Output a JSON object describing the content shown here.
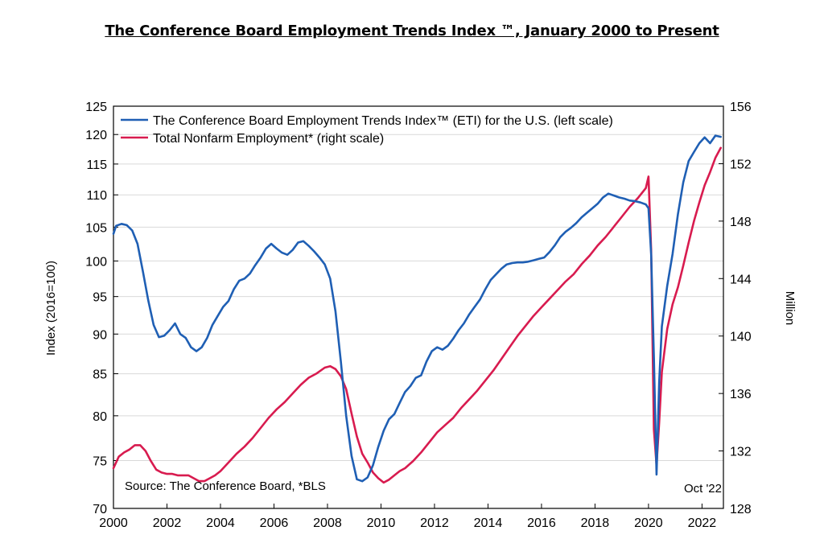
{
  "title": "The Conference Board Employment Trends Index ™, January 2000 to Present",
  "chart_data": {
    "type": "line",
    "title": "The Conference Board Employment Trends Index ™, January 2000 to Present",
    "xlabel": "",
    "ylabel_left": "Index (2016=100)",
    "ylabel_right": "Million",
    "xlim": [
      2000,
      2022.8
    ],
    "ylim_left": [
      70,
      125
    ],
    "ylim_right": [
      128,
      156
    ],
    "left_scale": "log",
    "x_ticks": [
      "2000",
      "2002",
      "2004",
      "2006",
      "2008",
      "2010",
      "2012",
      "2014",
      "2016",
      "2018",
      "2020",
      "2022"
    ],
    "y_ticks_left": [
      70,
      75,
      80,
      85,
      90,
      95,
      100,
      105,
      110,
      115,
      120,
      125
    ],
    "y_ticks_right": [
      128,
      132,
      136,
      140,
      144,
      148,
      152,
      156
    ],
    "grid": "horizontal",
    "legend_position": "top-left",
    "annotations": {
      "source": "Source: The Conference Board, *BLS",
      "date": "Oct '22"
    },
    "series": [
      {
        "name": "The Conference Board Employment Trends Index™ (ETI) for the U.S. (left scale)",
        "axis": "left",
        "color": "#1f5fb4",
        "x": [
          2000.0,
          2000.1,
          2000.3,
          2000.5,
          2000.7,
          2000.9,
          2001.1,
          2001.3,
          2001.5,
          2001.7,
          2001.9,
          2002.1,
          2002.3,
          2002.5,
          2002.7,
          2002.9,
          2003.1,
          2003.3,
          2003.5,
          2003.7,
          2003.9,
          2004.1,
          2004.3,
          2004.5,
          2004.7,
          2004.9,
          2005.1,
          2005.3,
          2005.5,
          2005.7,
          2005.9,
          2006.1,
          2006.3,
          2006.5,
          2006.7,
          2006.9,
          2007.1,
          2007.3,
          2007.5,
          2007.7,
          2007.9,
          2008.1,
          2008.3,
          2008.5,
          2008.7,
          2008.9,
          2009.1,
          2009.3,
          2009.5,
          2009.7,
          2009.9,
          2010.1,
          2010.3,
          2010.5,
          2010.7,
          2010.9,
          2011.1,
          2011.3,
          2011.5,
          2011.7,
          2011.9,
          2012.1,
          2012.3,
          2012.5,
          2012.7,
          2012.9,
          2013.1,
          2013.3,
          2013.5,
          2013.7,
          2013.9,
          2014.1,
          2014.3,
          2014.5,
          2014.7,
          2014.9,
          2015.1,
          2015.3,
          2015.5,
          2015.7,
          2015.9,
          2016.1,
          2016.3,
          2016.5,
          2016.7,
          2016.9,
          2017.1,
          2017.3,
          2017.5,
          2017.7,
          2017.9,
          2018.1,
          2018.3,
          2018.5,
          2018.7,
          2018.9,
          2019.1,
          2019.3,
          2019.5,
          2019.7,
          2019.9,
          2020.0,
          2020.1,
          2020.2,
          2020.3,
          2020.4,
          2020.5,
          2020.7,
          2020.9,
          2021.1,
          2021.3,
          2021.5,
          2021.7,
          2021.9,
          2022.1,
          2022.3,
          2022.5,
          2022.7
        ],
        "values": [
          104.0,
          105.2,
          105.5,
          105.3,
          104.5,
          102.5,
          98.5,
          94.5,
          91.2,
          89.6,
          89.8,
          90.5,
          91.4,
          90.0,
          89.5,
          88.3,
          87.8,
          88.3,
          89.5,
          91.2,
          92.4,
          93.6,
          94.4,
          96.0,
          97.2,
          97.5,
          98.2,
          99.4,
          100.5,
          101.8,
          102.5,
          101.8,
          101.2,
          100.9,
          101.6,
          102.7,
          102.9,
          102.2,
          101.4,
          100.5,
          99.5,
          97.5,
          93.0,
          86.5,
          80.0,
          75.5,
          73.0,
          72.8,
          73.2,
          74.5,
          76.5,
          78.3,
          79.6,
          80.2,
          81.5,
          82.8,
          83.5,
          84.5,
          84.8,
          86.5,
          87.8,
          88.3,
          88.0,
          88.5,
          89.4,
          90.5,
          91.4,
          92.6,
          93.6,
          94.6,
          96.0,
          97.3,
          98.1,
          98.9,
          99.5,
          99.7,
          99.8,
          99.8,
          99.9,
          100.1,
          100.3,
          100.5,
          101.3,
          102.3,
          103.5,
          104.3,
          104.9,
          105.6,
          106.5,
          107.2,
          107.9,
          108.6,
          109.6,
          110.2,
          109.9,
          109.6,
          109.4,
          109.1,
          109.0,
          108.8,
          108.5,
          107.9,
          101.0,
          87.0,
          73.5,
          84.0,
          91.0,
          96.5,
          101.0,
          107.0,
          112.0,
          115.5,
          117.0,
          118.5,
          119.5,
          118.5,
          119.8,
          119.6
        ]
      },
      {
        "name": "Total Nonfarm Employment* (right scale)",
        "axis": "right",
        "color": "#d81b4f",
        "x": [
          2000.0,
          2000.2,
          2000.4,
          2000.6,
          2000.8,
          2001.0,
          2001.2,
          2001.4,
          2001.6,
          2001.8,
          2002.0,
          2002.2,
          2002.4,
          2002.6,
          2002.8,
          2003.0,
          2003.2,
          2003.4,
          2003.6,
          2003.8,
          2004.0,
          2004.3,
          2004.6,
          2004.9,
          2005.2,
          2005.5,
          2005.8,
          2006.1,
          2006.4,
          2006.7,
          2007.0,
          2007.3,
          2007.6,
          2007.9,
          2008.1,
          2008.3,
          2008.5,
          2008.7,
          2008.9,
          2009.1,
          2009.3,
          2009.5,
          2009.7,
          2009.9,
          2010.1,
          2010.3,
          2010.5,
          2010.7,
          2010.9,
          2011.2,
          2011.5,
          2011.8,
          2012.1,
          2012.4,
          2012.7,
          2013.0,
          2013.3,
          2013.6,
          2013.9,
          2014.2,
          2014.5,
          2014.8,
          2015.1,
          2015.4,
          2015.7,
          2016.0,
          2016.3,
          2016.6,
          2016.9,
          2017.2,
          2017.5,
          2017.8,
          2018.1,
          2018.4,
          2018.7,
          2019.0,
          2019.3,
          2019.6,
          2019.9,
          2020.0,
          2020.1,
          2020.2,
          2020.3,
          2020.4,
          2020.5,
          2020.7,
          2020.9,
          2021.1,
          2021.3,
          2021.5,
          2021.7,
          2021.9,
          2022.1,
          2022.3,
          2022.5,
          2022.7
        ],
        "values": [
          130.8,
          131.6,
          131.9,
          132.1,
          132.4,
          132.4,
          132.0,
          131.3,
          130.7,
          130.5,
          130.4,
          130.4,
          130.3,
          130.3,
          130.3,
          130.1,
          129.9,
          129.9,
          130.1,
          130.3,
          130.6,
          131.2,
          131.8,
          132.3,
          132.9,
          133.6,
          134.3,
          134.9,
          135.4,
          136.0,
          136.6,
          137.1,
          137.4,
          137.8,
          137.9,
          137.7,
          137.2,
          136.3,
          134.6,
          133.0,
          131.8,
          131.2,
          130.5,
          130.1,
          129.8,
          130.0,
          130.3,
          130.6,
          130.8,
          131.3,
          131.9,
          132.6,
          133.3,
          133.8,
          134.3,
          135.0,
          135.6,
          136.2,
          136.9,
          137.6,
          138.4,
          139.2,
          140.0,
          140.7,
          141.4,
          142.0,
          142.6,
          143.2,
          143.8,
          144.3,
          145.0,
          145.6,
          146.3,
          146.9,
          147.6,
          148.3,
          149.0,
          149.6,
          150.3,
          151.1,
          146.0,
          133.5,
          131.0,
          134.0,
          137.5,
          140.5,
          142.2,
          143.4,
          144.9,
          146.5,
          148.0,
          149.3,
          150.5,
          151.4,
          152.4,
          153.1
        ]
      }
    ]
  }
}
